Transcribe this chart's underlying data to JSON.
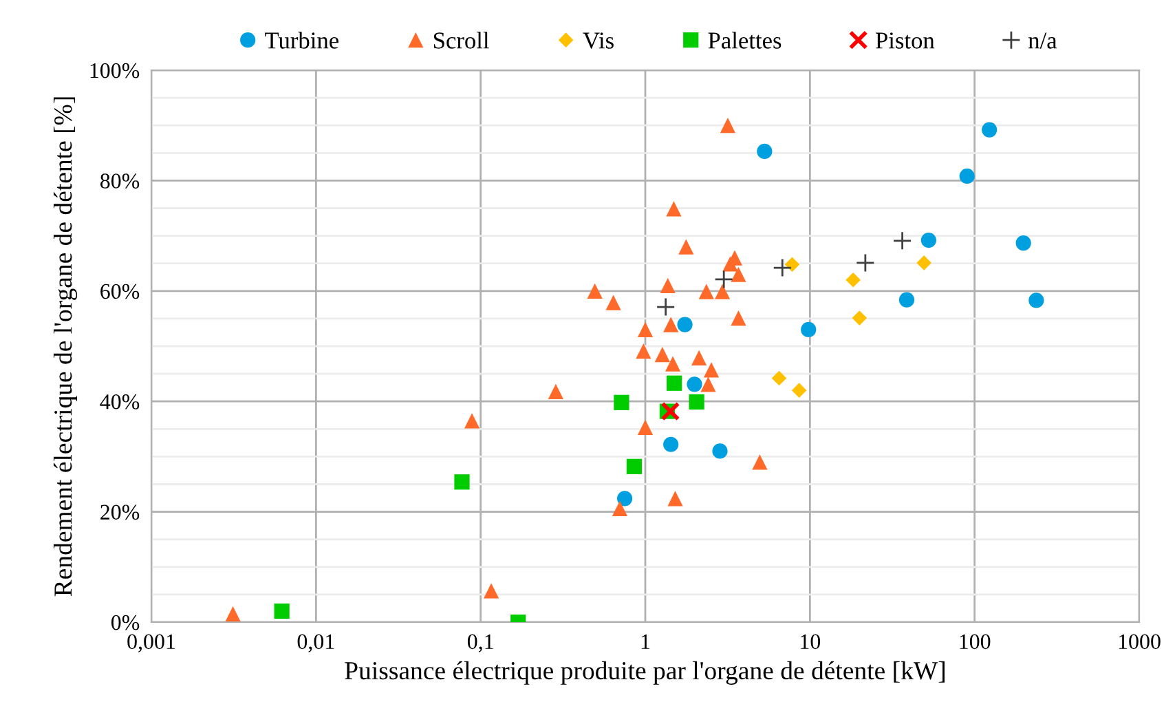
{
  "chart_data": {
    "type": "scatter",
    "xlabel": "Puissance électrique produite par l'organe de détente [kW]",
    "ylabel": "Rendement électrique de l'organe de détente [%]",
    "log": "x",
    "grid": true,
    "legend": "top",
    "xlim": [
      0.001,
      1000
    ],
    "xticks": [
      {
        "value": 0.001,
        "label": "0,001"
      },
      {
        "value": 0.01,
        "label": "0,01"
      },
      {
        "value": 0.1,
        "label": "0,1"
      },
      1,
      10,
      100,
      1000
    ],
    "ylim": [
      0,
      100
    ],
    "yticks": [
      {
        "value": 0,
        "label": "0%"
      },
      {
        "value": 5,
        "label": null
      },
      {
        "value": 10,
        "label": null
      },
      {
        "value": 15,
        "label": null
      },
      {
        "value": 20,
        "label": "20%"
      },
      {
        "value": 25,
        "label": null
      },
      {
        "value": 30,
        "label": null
      },
      {
        "value": 35,
        "label": null
      },
      {
        "value": 40,
        "label": "40%"
      },
      {
        "value": 45,
        "label": null
      },
      {
        "value": 50,
        "label": null
      },
      {
        "value": 55,
        "label": null
      },
      {
        "value": 60,
        "label": "60%"
      },
      {
        "value": 65,
        "label": null
      },
      {
        "value": 70,
        "label": null
      },
      {
        "value": 75,
        "label": null
      },
      {
        "value": 80,
        "label": "80%"
      },
      {
        "value": 85,
        "label": null
      },
      {
        "value": 90,
        "label": null
      },
      {
        "value": 95,
        "label": null
      },
      {
        "value": 100,
        "label": "100%"
      }
    ],
    "series": [
      {
        "name": "Turbine",
        "color": "#00a0e0",
        "marker": "circle",
        "x": [
          5.3,
          123,
          90,
          52.6,
          198,
          38.7,
          237,
          9.8,
          1.74,
          1.99,
          1.43,
          2.84,
          0.75
        ],
        "values": [
          85.3,
          89.2,
          80.8,
          69.2,
          68.7,
          58.4,
          58.3,
          53.0,
          53.9,
          43.1,
          32.2,
          31.0,
          22.4
        ]
      },
      {
        "name": "Scroll",
        "color": "#ff6a2a",
        "marker": "triangle",
        "x": [
          3.17,
          1.49,
          1.77,
          3.49,
          3.28,
          3.68,
          1.37,
          2.35,
          2.94,
          0.64,
          3.68,
          1.0,
          1.43,
          0.975,
          1.27,
          1.47,
          2.12,
          2.52,
          2.41,
          1.52,
          1.0,
          4.96,
          1.52,
          0.7,
          0.494,
          0.286,
          0.0886,
          0.116,
          0.00313
        ],
        "values": [
          90.0,
          74.9,
          68.0,
          66.0,
          64.9,
          63.0,
          61.0,
          59.9,
          59.9,
          57.9,
          55.1,
          53.0,
          53.9,
          49.1,
          48.5,
          46.8,
          47.9,
          45.7,
          43.1,
          null,
          35.3,
          29.0,
          22.4,
          20.6,
          60.0,
          41.8,
          36.5,
          5.7,
          1.5
        ]
      },
      {
        "name": "Vis",
        "color": "#ffc000",
        "marker": "diamond",
        "x": [
          7.8,
          18.3,
          49.3,
          20.0,
          6.5,
          8.6
        ],
        "values": [
          64.8,
          62.0,
          65.1,
          55.1,
          44.2,
          42.0
        ]
      },
      {
        "name": "Palettes",
        "color": "#00cc00",
        "marker": "square",
        "x": [
          1.5,
          0.717,
          2.05,
          1.36,
          0.857,
          0.077,
          0.0062,
          0.169
        ],
        "values": [
          43.3,
          39.8,
          39.9,
          38.2,
          28.2,
          25.4,
          2.0,
          0
        ]
      },
      {
        "name": "Piston",
        "color": "#ff0000",
        "marker": "cross",
        "x": [
          1.42
        ],
        "values": [
          38.2
        ]
      },
      {
        "name": "n/a",
        "color": "#404040",
        "marker": "plus",
        "x": [
          1.33,
          3.0,
          6.8,
          21.7,
          36.4
        ],
        "values": [
          57.1,
          62.1,
          64.2,
          65.1,
          69.1
        ]
      }
    ]
  }
}
